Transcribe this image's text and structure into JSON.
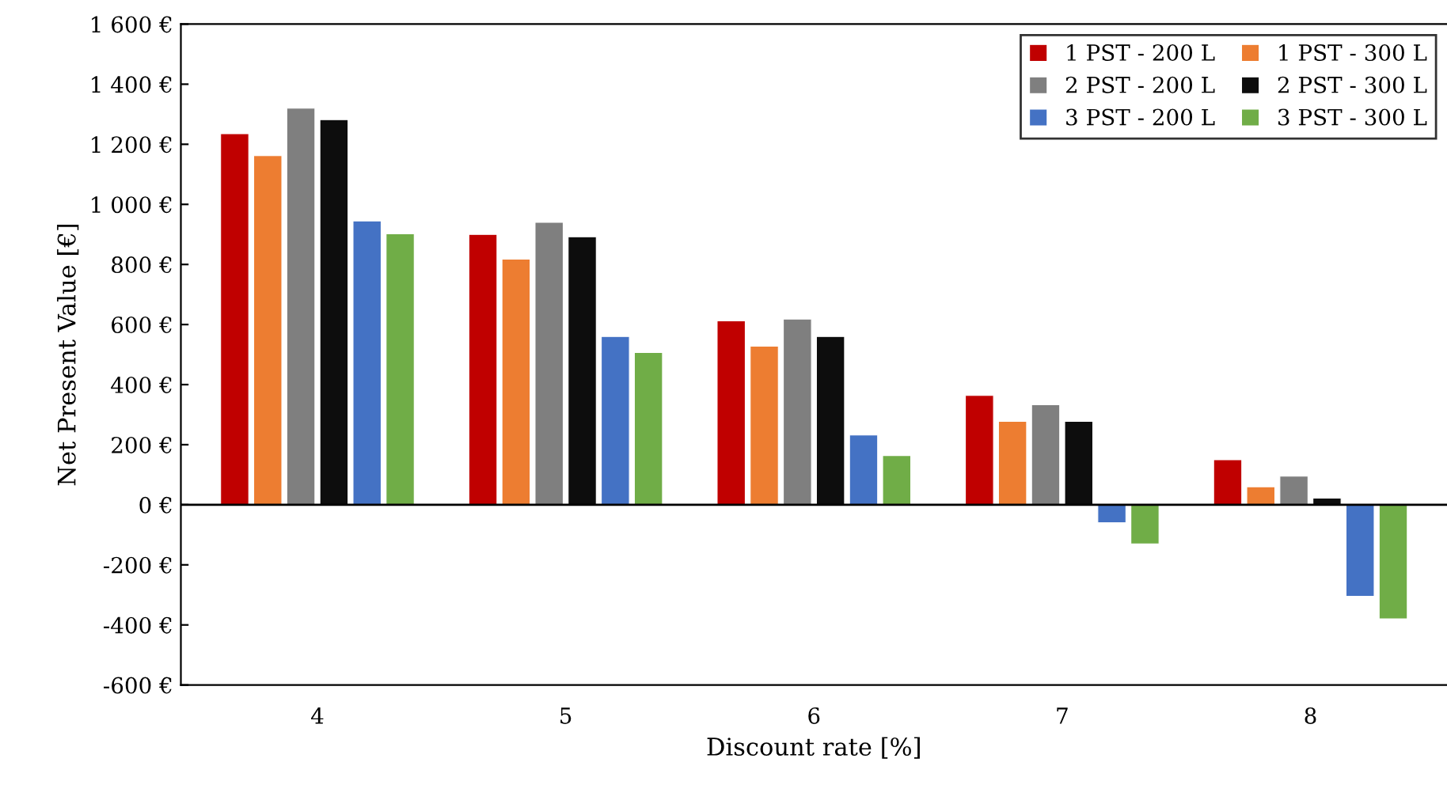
{
  "chart_data": {
    "type": "bar",
    "xlabel": "Discount rate [%]",
    "ylabel": "Net Present Value [€]",
    "categories": [
      "4",
      "5",
      "6",
      "7",
      "8"
    ],
    "series": [
      {
        "name": "1 PST - 200 L",
        "color": "#c00000",
        "values": [
          1235,
          900,
          612,
          364,
          150
        ]
      },
      {
        "name": "1 PST - 300 L",
        "color": "#ed7d31",
        "values": [
          1162,
          818,
          528,
          278,
          60
        ]
      },
      {
        "name": "2 PST - 200 L",
        "color": "#7f7f7f",
        "values": [
          1320,
          940,
          618,
          333,
          95
        ]
      },
      {
        "name": "2 PST - 300 L",
        "color": "#0d0d0d",
        "values": [
          1282,
          892,
          560,
          278,
          22
        ]
      },
      {
        "name": "3 PST - 200 L",
        "color": "#4472c4",
        "values": [
          945,
          560,
          232,
          -60,
          -305
        ]
      },
      {
        "name": "3 PST - 300 L",
        "color": "#70ad47",
        "values": [
          902,
          507,
          164,
          -130,
          -380
        ]
      }
    ],
    "ylim": [
      -600,
      1600
    ],
    "yticks": [
      {
        "value": -600,
        "label": "-600 €"
      },
      {
        "value": -400,
        "label": "-400 €"
      },
      {
        "value": -200,
        "label": "-200 €"
      },
      {
        "value": 0,
        "label": "0 €"
      },
      {
        "value": 200,
        "label": "200 €"
      },
      {
        "value": 400,
        "label": "400 €"
      },
      {
        "value": 600,
        "label": "600 €"
      },
      {
        "value": 800,
        "label": "800 €"
      },
      {
        "value": 1000,
        "label": "1 000 €"
      },
      {
        "value": 1200,
        "label": "1 200 €"
      },
      {
        "value": 1400,
        "label": "1 400 €"
      },
      {
        "value": 1600,
        "label": "1 600 €"
      }
    ],
    "ref_lines": [
      {
        "axis": "y",
        "value": 0,
        "color": "#000000"
      }
    ],
    "grid": false,
    "legend": "top right"
  }
}
